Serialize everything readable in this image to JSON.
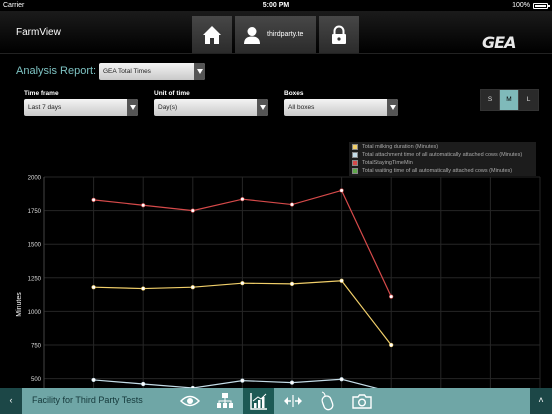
{
  "status_bar": {
    "carrier": "Carrier",
    "time": "5:00 PM",
    "battery": "100%"
  },
  "topnav": {
    "app_title": "FarmView",
    "user_name": "thirdparty.te",
    "logo_text": "GEA"
  },
  "report": {
    "label": "Analysis Report:",
    "selected": "GEA Total Times"
  },
  "filters": {
    "timeframe": {
      "label": "Time frame",
      "value": "Last 7 days"
    },
    "unit": {
      "label": "Unit of time",
      "value": "Day(s)"
    },
    "boxes": {
      "label": "Boxes",
      "value": "All boxes"
    }
  },
  "size_toggle": {
    "options": [
      "S",
      "M",
      "L"
    ],
    "selected": "M"
  },
  "chart_data": {
    "type": "line",
    "ylabel": "Minutes",
    "yticks": [
      500,
      750,
      1000,
      1250,
      1500,
      1750,
      2000
    ],
    "ylim": [
      430,
      2000
    ],
    "xlim": [
      0,
      10
    ],
    "grid": true,
    "legend_position": "top-right",
    "series": [
      {
        "name": "Total milking duration (Minutes)",
        "color": "#f1cf6a",
        "values": [
          1180,
          1170,
          1180,
          1210,
          1205,
          1228,
          750
        ]
      },
      {
        "name": "Total attachment time of all automatically attached cows (Minutes)",
        "color": "#c5dde8",
        "values": [
          490,
          460,
          430,
          485,
          470,
          495,
          400
        ]
      },
      {
        "name": "TotalStayingTimeMin",
        "color": "#d64a4a",
        "values": [
          1830,
          1790,
          1750,
          1835,
          1795,
          1900,
          1110
        ]
      },
      {
        "name": "Total waiting time of all automatically attached cows (Minutes)",
        "color": "#5fa84a",
        "values": []
      }
    ]
  },
  "bottombar": {
    "facility": "Facility for Third Party Tests"
  }
}
